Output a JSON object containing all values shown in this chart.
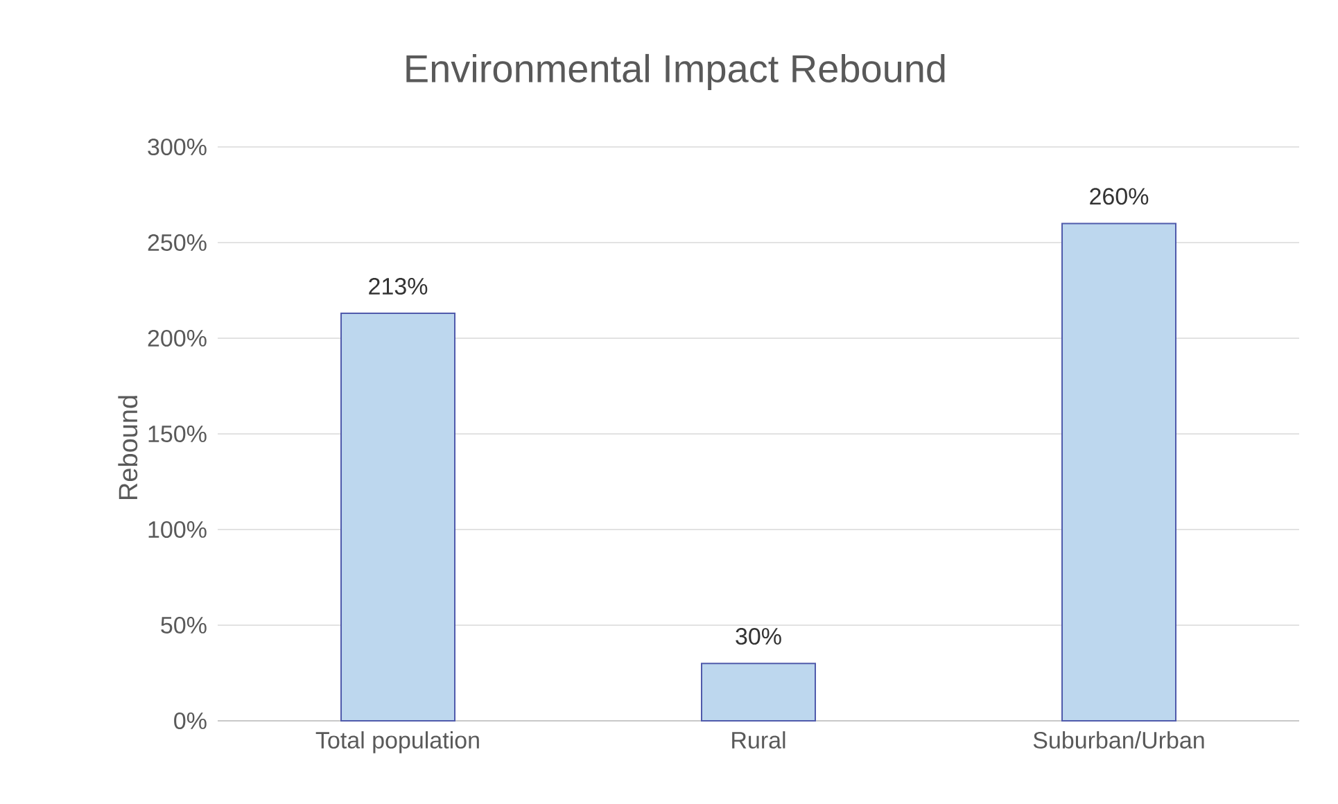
{
  "chart_data": {
    "type": "bar",
    "title": "Environmental Impact Rebound",
    "ylabel": "Rebound",
    "categories": [
      "Total population",
      "Rural",
      "Suburban/Urban"
    ],
    "values": [
      213,
      30,
      260
    ],
    "value_labels": [
      "213%",
      "30%",
      "260%"
    ],
    "color": "#bdd7ee",
    "ylim": [
      0,
      300
    ],
    "yticks": [
      {
        "value": 0,
        "label": "0%"
      },
      {
        "value": 50,
        "label": "50%"
      },
      {
        "value": 100,
        "label": "100%"
      },
      {
        "value": 150,
        "label": "150%"
      },
      {
        "value": 200,
        "label": "200%"
      },
      {
        "value": 250,
        "label": "250%"
      },
      {
        "value": 300,
        "label": "300%"
      }
    ],
    "grid": "y"
  }
}
